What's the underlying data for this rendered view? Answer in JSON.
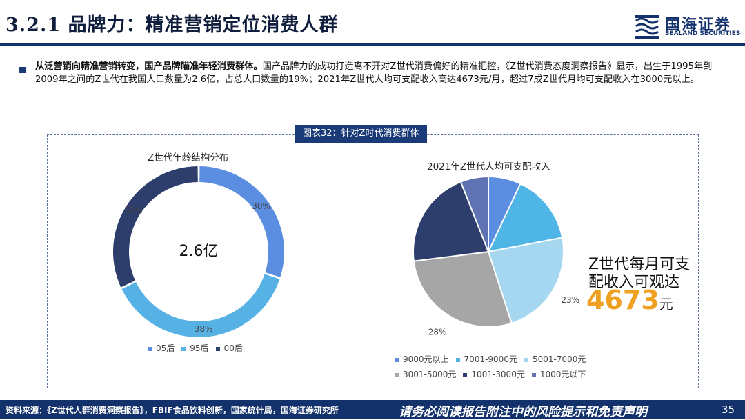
{
  "header": {
    "title": "3.2.1 品牌力：精准营销定位消费人群",
    "brand_cn": "国海证券",
    "brand_en": "SEALAND SECURITIES"
  },
  "bullet": {
    "lead": "从泛营销向精准营销转变，国产品牌瞄准年轻消费群体。",
    "body": "国产品牌力的成功打造离不开对Z世代消费偏好的精准把控，《Z世代消费态度洞察报告》显示，出生于1995年到2009年之间的Z世代在我国人口数量为2.6亿，占总人口数量的19%；2021年Z世代人均可支配收入高达4673元/月，超过7成Z世代月均可支配收入在3000元以上。"
  },
  "figure_label": "图表32：针对Z时代消费群体",
  "callout": {
    "line1": "Z世代每月可支",
    "line2": "配收入可观达",
    "value": "4673",
    "unit": "元"
  },
  "footer": {
    "source": "资料来源：《Z世代人群消费洞察报告》，FBIF食品饮料创新，国家统计局，国海证券研究所",
    "disclaimer": "请务必阅读报告附注中的风险提示和免责声明",
    "page": "35"
  },
  "colors": {
    "primary": "#13316b",
    "accent": "#f0a020"
  },
  "chart_data": [
    {
      "type": "pie",
      "variant": "donut",
      "title": "Z世代年龄结构分布",
      "center_label": "2.6亿",
      "categories": [
        "05后",
        "95后",
        "00后"
      ],
      "values": [
        30,
        38,
        32
      ],
      "labels": [
        "30%",
        "38%",
        "32%"
      ],
      "colors": [
        "#5b8ee0",
        "#56b2e5",
        "#2e3e6c"
      ],
      "legend_position": "bottom"
    },
    {
      "type": "pie",
      "title": "2021年Z世代人均可支配收入",
      "categories": [
        "9000元以上",
        "7001-9000元",
        "5001-7000元",
        "3001-5000元",
        "1001-3000元",
        "1000元以下"
      ],
      "values": [
        7,
        15,
        23,
        28,
        21,
        6
      ],
      "labels": [
        "",
        "",
        "23%",
        "28%",
        "",
        ""
      ],
      "colors": [
        "#5b8ee0",
        "#4fb4e6",
        "#a6d7f0",
        "#a6a6a6",
        "#2e3e6c",
        "#5f73b3"
      ],
      "legend_position": "bottom"
    }
  ]
}
